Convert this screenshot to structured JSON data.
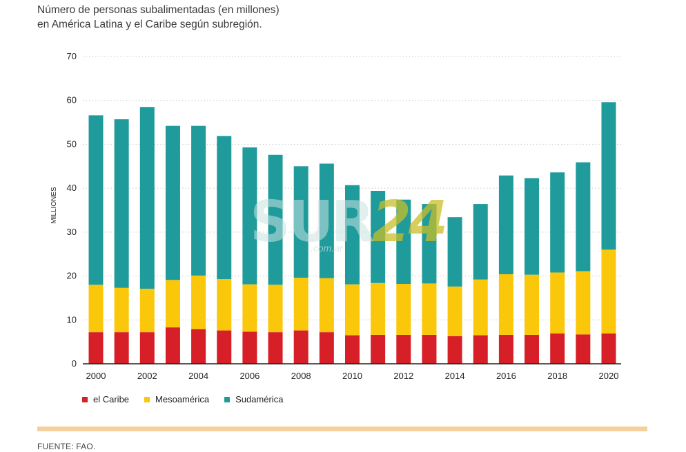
{
  "header": {
    "line1": "Número de personas subalimentadas (en millones)",
    "line2": "en América Latina y el Caribe según subregión."
  },
  "watermark": {
    "text_a": "SUR",
    "text_b": "24",
    "sub": ".com.ar"
  },
  "source": "FUENTE: FAO.",
  "colors": {
    "caribe": "#d61f26",
    "mesoamerica": "#fbc70a",
    "sudamerica": "#1f9b9c",
    "grid": "#c8c8c8",
    "axis": "#222222",
    "rule": "#f5d09e"
  },
  "chart_data": {
    "type": "bar",
    "stacked": true,
    "ylabel": "MILLIONES",
    "xlabel": "",
    "ylim": [
      0,
      70
    ],
    "yticks": [
      0,
      10,
      20,
      30,
      40,
      50,
      60,
      70
    ],
    "grid": "horizontal dotted",
    "legend_position": "bottom-left",
    "categories": [
      "2000",
      "2001",
      "2002",
      "2003",
      "2004",
      "2005",
      "2006",
      "2007",
      "2008",
      "2009",
      "2010",
      "2011",
      "2012",
      "2013",
      "2014",
      "2015",
      "2016",
      "2017",
      "2018",
      "2019",
      "2020"
    ],
    "x_tick_labels": [
      "2000",
      "",
      "2002",
      "",
      "2004",
      "",
      "2006",
      "",
      "2008",
      "",
      "2010",
      "",
      "2012",
      "",
      "2014",
      "",
      "2016",
      "",
      "2018",
      "",
      "2020"
    ],
    "series": [
      {
        "name": "el Caribe",
        "color_key": "caribe",
        "values": [
          7.2,
          7.2,
          7.2,
          8.3,
          7.9,
          7.6,
          7.3,
          7.2,
          7.6,
          7.2,
          6.5,
          6.6,
          6.6,
          6.6,
          6.3,
          6.5,
          6.6,
          6.6,
          6.9,
          6.7,
          6.9
        ]
      },
      {
        "name": "Mesoamérica",
        "color_key": "mesoamerica",
        "values": [
          10.8,
          10.1,
          9.9,
          10.8,
          12.2,
          11.7,
          10.8,
          10.8,
          12.0,
          12.3,
          11.6,
          11.8,
          11.6,
          11.7,
          11.3,
          12.7,
          13.8,
          13.7,
          13.9,
          14.4,
          19.1
        ]
      },
      {
        "name": "Sudamérica",
        "color_key": "sudamerica",
        "values": [
          38.6,
          38.4,
          41.4,
          35.1,
          34.1,
          32.6,
          31.2,
          29.6,
          25.4,
          26.1,
          22.6,
          21.0,
          19.2,
          18.1,
          15.8,
          17.2,
          22.5,
          22.0,
          22.8,
          24.8,
          33.6
        ]
      }
    ]
  }
}
